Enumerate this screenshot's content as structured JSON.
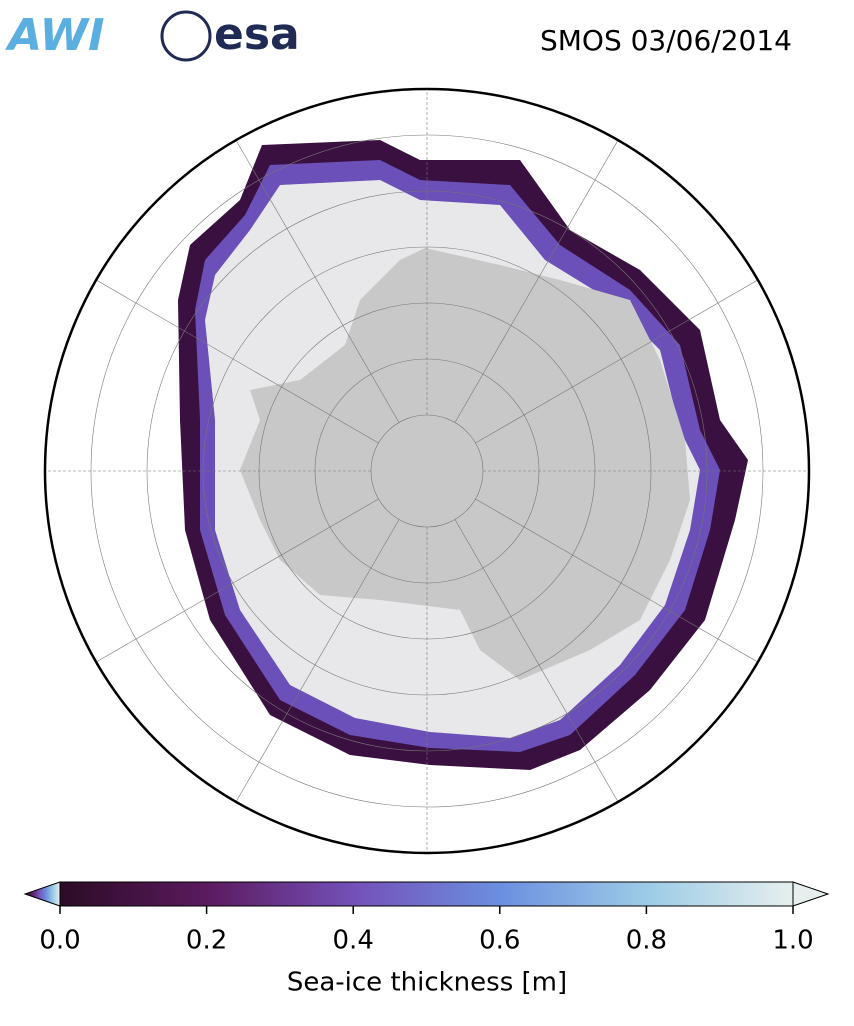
{
  "header": {
    "logos": [
      "AWI",
      "esa"
    ],
    "title": "SMOS 03/06/2014"
  },
  "colorbar": {
    "label": "Sea-ice thickness [m]",
    "lim": [
      0,
      1
    ],
    "ticks": [
      {
        "value": 0,
        "label": "0.0"
      },
      {
        "value": 0.2,
        "label": "0.2"
      },
      {
        "value": 0.4,
        "label": "0.4"
      },
      {
        "value": 0.6,
        "label": "0.6"
      },
      {
        "value": 0.8,
        "label": "0.8"
      },
      {
        "value": 1,
        "label": "1.0"
      }
    ],
    "colors": [
      "#2b0c25",
      "#5b1a5e",
      "#7450b8",
      "#6b8fe0",
      "#9ccbe6",
      "#e6efee"
    ]
  }
}
